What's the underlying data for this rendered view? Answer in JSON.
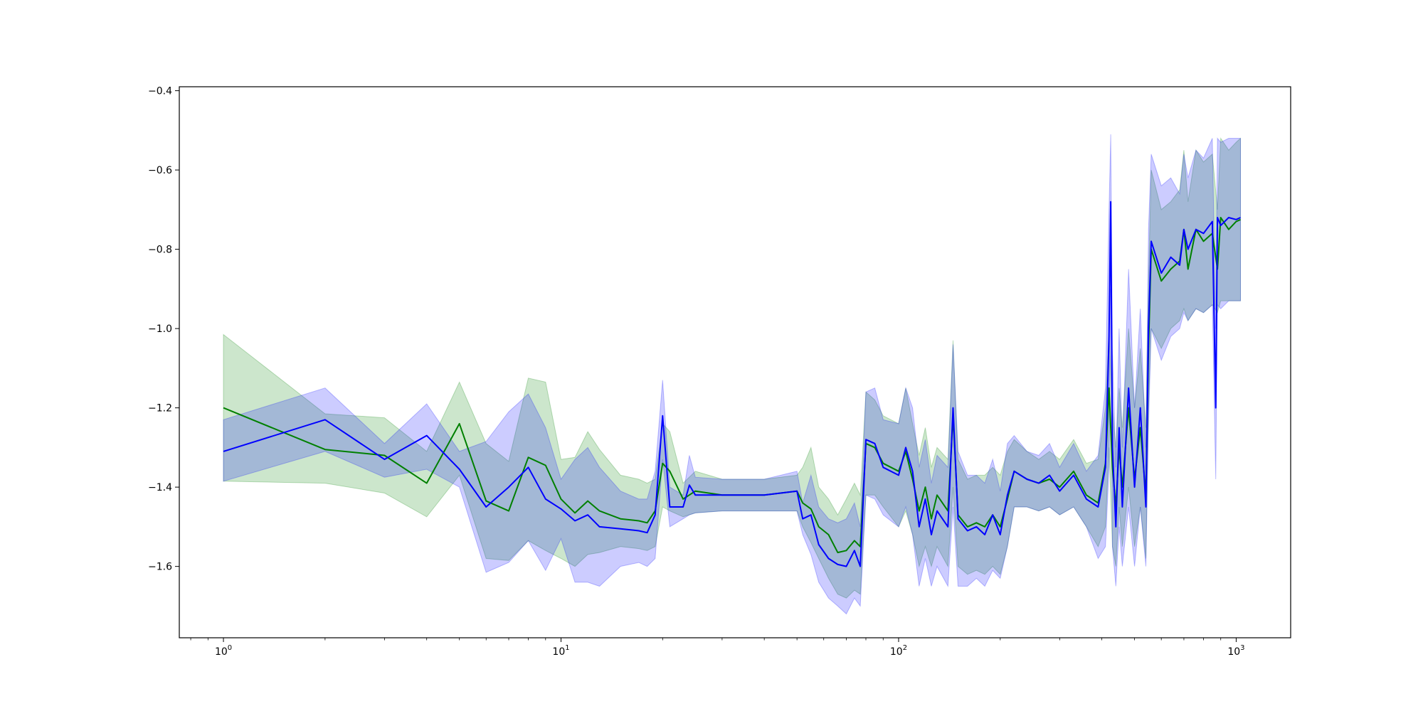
{
  "chart_data": {
    "type": "line",
    "title": "",
    "xlabel": "",
    "ylabel": "",
    "xscale": "log",
    "xlim": [
      0.74,
      1450
    ],
    "ylim": [
      -1.78,
      -0.39
    ],
    "grid": false,
    "legend": "none",
    "x_ticks": [
      {
        "value": 1,
        "base": "10",
        "exp": "0"
      },
      {
        "value": 10,
        "base": "10",
        "exp": "1"
      },
      {
        "value": 100,
        "base": "10",
        "exp": "2"
      },
      {
        "value": 1000,
        "base": "10",
        "exp": "3"
      }
    ],
    "y_ticks": [
      {
        "value": -0.4,
        "label": "−0.4"
      },
      {
        "value": -0.6,
        "label": "−0.6"
      },
      {
        "value": -0.8,
        "label": "−0.8"
      },
      {
        "value": -1.0,
        "label": "−1.0"
      },
      {
        "value": -1.2,
        "label": "−1.2"
      },
      {
        "value": -1.4,
        "label": "−1.4"
      },
      {
        "value": -1.6,
        "label": "−1.6"
      }
    ],
    "series": [
      {
        "color": "#008000",
        "band_color": "#008000",
        "band_opacity": 0.2,
        "x": [
          1,
          2,
          3,
          4,
          5,
          6,
          7,
          8,
          9,
          10,
          11,
          12,
          13,
          15,
          17,
          18,
          19,
          20,
          21,
          23,
          25,
          30,
          40,
          50,
          52,
          55,
          58,
          62,
          66,
          70,
          74,
          77,
          80,
          85,
          90,
          100,
          105,
          110,
          115,
          120,
          125,
          130,
          140,
          145,
          150,
          160,
          170,
          180,
          190,
          200,
          210,
          220,
          240,
          260,
          280,
          300,
          330,
          360,
          390,
          410,
          420,
          430,
          440,
          450,
          460,
          480,
          500,
          520,
          540,
          550,
          560,
          600,
          640,
          680,
          700,
          720,
          760,
          800,
          850,
          880,
          900,
          950,
          1000,
          1030
        ],
        "y": [
          -1.2,
          -1.305,
          -1.32,
          -1.39,
          -1.24,
          -1.435,
          -1.46,
          -1.325,
          -1.345,
          -1.43,
          -1.465,
          -1.435,
          -1.46,
          -1.48,
          -1.485,
          -1.49,
          -1.46,
          -1.34,
          -1.36,
          -1.43,
          -1.41,
          -1.42,
          -1.42,
          -1.41,
          -1.44,
          -1.455,
          -1.5,
          -1.52,
          -1.565,
          -1.56,
          -1.535,
          -1.55,
          -1.29,
          -1.3,
          -1.34,
          -1.36,
          -1.31,
          -1.38,
          -1.46,
          -1.4,
          -1.48,
          -1.42,
          -1.46,
          -1.22,
          -1.47,
          -1.5,
          -1.49,
          -1.5,
          -1.47,
          -1.5,
          -1.43,
          -1.36,
          -1.38,
          -1.39,
          -1.38,
          -1.4,
          -1.36,
          -1.42,
          -1.44,
          -1.34,
          -1.15,
          -1.35,
          -1.45,
          -1.3,
          -1.4,
          -1.2,
          -1.38,
          -1.25,
          -1.42,
          -1.05,
          -0.8,
          -0.88,
          -0.85,
          -0.83,
          -0.75,
          -0.85,
          -0.75,
          -0.78,
          -0.76,
          -0.85,
          -0.72,
          -0.75,
          -0.73,
          -0.725
        ],
        "lower": [
          -1.385,
          -1.39,
          -1.415,
          -1.475,
          -1.37,
          -1.58,
          -1.585,
          -1.535,
          -1.56,
          -1.58,
          -1.6,
          -1.57,
          -1.565,
          -1.55,
          -1.555,
          -1.56,
          -1.55,
          -1.45,
          -1.46,
          -1.475,
          -1.465,
          -1.46,
          -1.46,
          -1.46,
          -1.5,
          -1.54,
          -1.58,
          -1.63,
          -1.67,
          -1.68,
          -1.66,
          -1.67,
          -1.42,
          -1.42,
          -1.45,
          -1.5,
          -1.46,
          -1.52,
          -1.6,
          -1.55,
          -1.6,
          -1.55,
          -1.6,
          -1.4,
          -1.6,
          -1.62,
          -1.61,
          -1.62,
          -1.6,
          -1.62,
          -1.55,
          -1.45,
          -1.45,
          -1.46,
          -1.45,
          -1.47,
          -1.45,
          -1.5,
          -1.55,
          -1.5,
          -1.3,
          -1.55,
          -1.6,
          -1.45,
          -1.55,
          -1.4,
          -1.55,
          -1.45,
          -1.58,
          -1.2,
          -1.0,
          -1.05,
          -1.0,
          -0.98,
          -0.95,
          -0.98,
          -0.95,
          -0.96,
          -0.94,
          -0.96,
          -0.93,
          -0.93,
          -0.93,
          -0.93
        ],
        "upper": [
          -1.015,
          -1.215,
          -1.225,
          -1.31,
          -1.135,
          -1.29,
          -1.335,
          -1.125,
          -1.135,
          -1.33,
          -1.325,
          -1.26,
          -1.305,
          -1.37,
          -1.38,
          -1.39,
          -1.38,
          -1.24,
          -1.26,
          -1.39,
          -1.36,
          -1.38,
          -1.38,
          -1.37,
          -1.35,
          -1.3,
          -1.4,
          -1.43,
          -1.47,
          -1.43,
          -1.39,
          -1.42,
          -1.16,
          -1.18,
          -1.22,
          -1.24,
          -1.15,
          -1.24,
          -1.32,
          -1.25,
          -1.35,
          -1.3,
          -1.33,
          -1.03,
          -1.33,
          -1.38,
          -1.37,
          -1.37,
          -1.35,
          -1.37,
          -1.31,
          -1.28,
          -1.31,
          -1.33,
          -1.31,
          -1.33,
          -1.28,
          -1.34,
          -1.33,
          -1.2,
          -1.0,
          -1.2,
          -1.3,
          -1.15,
          -1.25,
          -1.0,
          -1.2,
          -1.05,
          -1.25,
          -0.88,
          -0.6,
          -0.7,
          -0.68,
          -0.65,
          -0.55,
          -0.68,
          -0.55,
          -0.58,
          -0.56,
          -0.7,
          -0.52,
          -0.55,
          -0.53,
          -0.52
        ]
      },
      {
        "color": "#0000ff",
        "band_color": "#0000ff",
        "band_opacity": 0.2,
        "x": [
          1,
          2,
          3,
          4,
          5,
          6,
          7,
          8,
          9,
          10,
          11,
          12,
          13,
          15,
          17,
          18,
          19,
          20,
          21,
          23,
          24,
          25,
          30,
          40,
          50,
          52,
          55,
          58,
          62,
          66,
          70,
          74,
          77,
          80,
          85,
          90,
          100,
          105,
          110,
          115,
          120,
          125,
          130,
          140,
          145,
          150,
          160,
          170,
          180,
          190,
          200,
          210,
          220,
          240,
          260,
          280,
          300,
          330,
          360,
          390,
          410,
          420,
          425,
          430,
          440,
          450,
          460,
          480,
          500,
          520,
          540,
          550,
          560,
          600,
          640,
          680,
          700,
          720,
          760,
          800,
          850,
          870,
          880,
          900,
          950,
          1000,
          1030
        ],
        "y": [
          -1.31,
          -1.23,
          -1.33,
          -1.27,
          -1.355,
          -1.45,
          -1.4,
          -1.35,
          -1.43,
          -1.455,
          -1.485,
          -1.47,
          -1.5,
          -1.505,
          -1.51,
          -1.515,
          -1.47,
          -1.22,
          -1.45,
          -1.45,
          -1.395,
          -1.42,
          -1.42,
          -1.42,
          -1.41,
          -1.48,
          -1.47,
          -1.545,
          -1.58,
          -1.595,
          -1.6,
          -1.56,
          -1.6,
          -1.28,
          -1.29,
          -1.35,
          -1.37,
          -1.3,
          -1.36,
          -1.5,
          -1.43,
          -1.52,
          -1.46,
          -1.5,
          -1.2,
          -1.48,
          -1.51,
          -1.5,
          -1.52,
          -1.47,
          -1.52,
          -1.42,
          -1.36,
          -1.38,
          -1.39,
          -1.37,
          -1.41,
          -1.37,
          -1.43,
          -1.45,
          -1.35,
          -1.02,
          -0.68,
          -1.3,
          -1.5,
          -1.25,
          -1.45,
          -1.15,
          -1.4,
          -1.2,
          -1.45,
          -1.0,
          -0.78,
          -0.86,
          -0.82,
          -0.84,
          -0.75,
          -0.8,
          -0.75,
          -0.76,
          -0.73,
          -1.2,
          -0.72,
          -0.74,
          -0.72,
          -0.725,
          -0.72
        ],
        "lower": [
          -1.385,
          -1.31,
          -1.375,
          -1.355,
          -1.4,
          -1.615,
          -1.59,
          -1.535,
          -1.61,
          -1.53,
          -1.64,
          -1.64,
          -1.65,
          -1.6,
          -1.59,
          -1.6,
          -1.58,
          -1.33,
          -1.5,
          -1.48,
          -1.47,
          -1.465,
          -1.46,
          -1.46,
          -1.46,
          -1.52,
          -1.57,
          -1.64,
          -1.68,
          -1.7,
          -1.72,
          -1.68,
          -1.7,
          -1.42,
          -1.43,
          -1.47,
          -1.5,
          -1.45,
          -1.52,
          -1.65,
          -1.58,
          -1.65,
          -1.6,
          -1.65,
          -1.45,
          -1.65,
          -1.65,
          -1.63,
          -1.65,
          -1.61,
          -1.63,
          -1.55,
          -1.45,
          -1.45,
          -1.46,
          -1.45,
          -1.47,
          -1.45,
          -1.5,
          -1.58,
          -1.55,
          -1.35,
          -0.9,
          -1.55,
          -1.65,
          -1.5,
          -1.6,
          -1.45,
          -1.6,
          -1.45,
          -1.6,
          -1.25,
          -1.0,
          -1.08,
          -1.02,
          -1.0,
          -0.96,
          -0.98,
          -0.95,
          -0.96,
          -0.94,
          -1.38,
          -0.94,
          -0.95,
          -0.93,
          -0.93,
          -0.93
        ],
        "upper": [
          -1.23,
          -1.15,
          -1.29,
          -1.19,
          -1.31,
          -1.285,
          -1.21,
          -1.165,
          -1.25,
          -1.38,
          -1.33,
          -1.3,
          -1.35,
          -1.41,
          -1.43,
          -1.43,
          -1.36,
          -1.13,
          -1.4,
          -1.42,
          -1.32,
          -1.375,
          -1.38,
          -1.38,
          -1.36,
          -1.44,
          -1.37,
          -1.45,
          -1.48,
          -1.49,
          -1.48,
          -1.44,
          -1.5,
          -1.16,
          -1.15,
          -1.23,
          -1.24,
          -1.15,
          -1.2,
          -1.35,
          -1.28,
          -1.39,
          -1.32,
          -1.35,
          -1.04,
          -1.31,
          -1.37,
          -1.37,
          -1.39,
          -1.33,
          -1.41,
          -1.29,
          -1.27,
          -1.31,
          -1.32,
          -1.29,
          -1.35,
          -1.29,
          -1.36,
          -1.32,
          -1.15,
          -0.7,
          -0.51,
          -1.05,
          -1.35,
          -1.0,
          -1.3,
          -0.85,
          -1.2,
          -0.95,
          -1.3,
          -0.75,
          -0.56,
          -0.64,
          -0.62,
          -0.66,
          -0.56,
          -0.62,
          -0.55,
          -0.57,
          -0.52,
          -1.0,
          -0.52,
          -0.53,
          -0.52,
          -0.52,
          -0.52
        ]
      }
    ]
  }
}
